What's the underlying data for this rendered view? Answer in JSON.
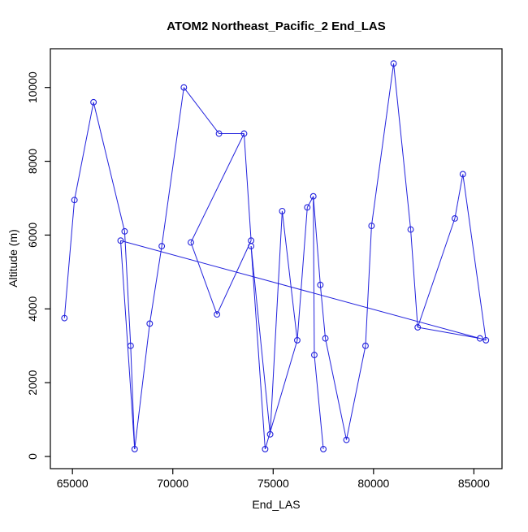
{
  "chart_data": {
    "type": "line",
    "title": "ATOM2 Northeast_Pacific_2 End_LAS",
    "xlabel": "End_LAS",
    "ylabel": "Altitude (m)",
    "x_ticks": [
      65000,
      70000,
      75000,
      80000,
      85000
    ],
    "y_ticks": [
      0,
      2000,
      4000,
      6000,
      8000,
      10000
    ],
    "xlim": [
      63900,
      86400
    ],
    "ylim": [
      -330,
      11050
    ],
    "grid": false,
    "legend": "none",
    "series_color": "#2222dd",
    "marker": "open-circle",
    "points": [
      {
        "x": 64600,
        "alt": 3750
      },
      {
        "x": 65100,
        "alt": 6950
      },
      {
        "x": 66050,
        "alt": 9600
      },
      {
        "x": 67600,
        "alt": 6100
      },
      {
        "x": 67400,
        "alt": 5850
      },
      {
        "x": 67900,
        "alt": 3000
      },
      {
        "x": 68100,
        "alt": 200
      },
      {
        "x": 68850,
        "alt": 3600
      },
      {
        "x": 69450,
        "alt": 5700
      },
      {
        "x": 70550,
        "alt": 10000
      },
      {
        "x": 70900,
        "alt": 5800
      },
      {
        "x": 72300,
        "alt": 8750
      },
      {
        "x": 73550,
        "alt": 8750
      },
      {
        "x": 73900,
        "alt": 5850
      },
      {
        "x": 73900,
        "alt": 5700
      },
      {
        "x": 72200,
        "alt": 3850
      },
      {
        "x": 74600,
        "alt": 200
      },
      {
        "x": 74850,
        "alt": 600
      },
      {
        "x": 75450,
        "alt": 6650
      },
      {
        "x": 76200,
        "alt": 3150
      },
      {
        "x": 76700,
        "alt": 6750
      },
      {
        "x": 77000,
        "alt": 7050
      },
      {
        "x": 77050,
        "alt": 2750
      },
      {
        "x": 77350,
        "alt": 4650
      },
      {
        "x": 77500,
        "alt": 200
      },
      {
        "x": 77600,
        "alt": 3200
      },
      {
        "x": 78650,
        "alt": 450
      },
      {
        "x": 79600,
        "alt": 3000
      },
      {
        "x": 79900,
        "alt": 6250
      },
      {
        "x": 81000,
        "alt": 10650
      },
      {
        "x": 81850,
        "alt": 6150
      },
      {
        "x": 82200,
        "alt": 3500
      },
      {
        "x": 84050,
        "alt": 6450
      },
      {
        "x": 84450,
        "alt": 7650
      },
      {
        "x": 85300,
        "alt": 3200
      },
      {
        "x": 85600,
        "alt": 3150
      }
    ],
    "segments": [
      [
        0,
        1
      ],
      [
        1,
        2
      ],
      [
        2,
        3
      ],
      [
        3,
        5
      ],
      [
        5,
        6
      ],
      [
        4,
        6
      ],
      [
        6,
        7
      ],
      [
        7,
        8
      ],
      [
        8,
        9
      ],
      [
        9,
        11
      ],
      [
        11,
        12
      ],
      [
        12,
        13
      ],
      [
        13,
        15
      ],
      [
        15,
        10
      ],
      [
        10,
        12
      ],
      [
        14,
        16
      ],
      [
        14,
        17
      ],
      [
        17,
        18
      ],
      [
        16,
        19
      ],
      [
        18,
        19
      ],
      [
        19,
        20
      ],
      [
        20,
        21
      ],
      [
        21,
        22
      ],
      [
        21,
        23
      ],
      [
        22,
        24
      ],
      [
        23,
        25
      ],
      [
        25,
        26
      ],
      [
        26,
        27
      ],
      [
        27,
        28
      ],
      [
        28,
        29
      ],
      [
        29,
        30
      ],
      [
        30,
        31
      ],
      [
        31,
        32
      ],
      [
        32,
        33
      ],
      [
        33,
        35
      ],
      [
        34,
        35
      ],
      [
        31,
        34
      ]
    ],
    "trend_line": {
      "x1": 67400,
      "alt1": 5850,
      "x2": 85300,
      "alt2": 3200
    }
  }
}
